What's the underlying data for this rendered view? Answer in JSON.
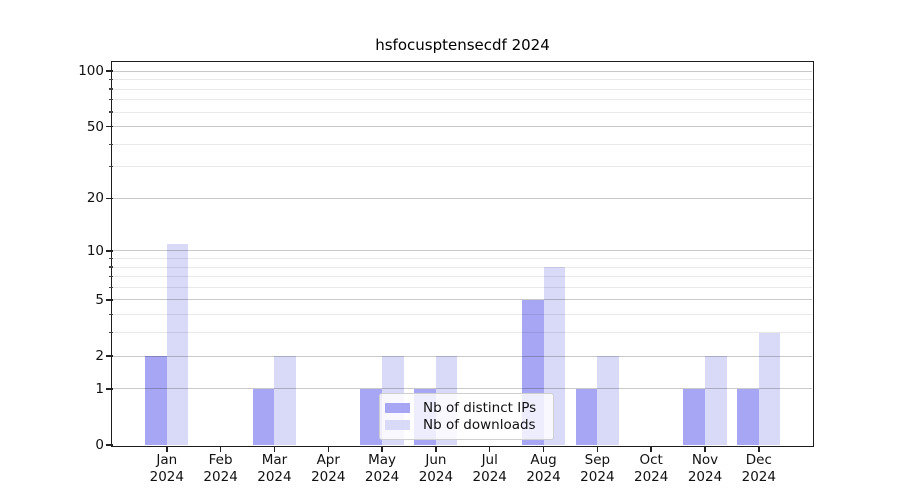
{
  "window": {
    "background": "#ffffff"
  },
  "chart_data": {
    "type": "bar",
    "title": "hsfocusptensecdf 2024",
    "categories": [
      "Jan",
      "Feb",
      "Mar",
      "Apr",
      "May",
      "Jun",
      "Jul",
      "Aug",
      "Sep",
      "Oct",
      "Nov",
      "Dec"
    ],
    "x_tick_year": "2024",
    "series": [
      {
        "name": "Nb of distinct IPs",
        "color": "#a6a6f4",
        "values": [
          2,
          0,
          1,
          0,
          1,
          1,
          0,
          5,
          1,
          0,
          1,
          1
        ]
      },
      {
        "name": "Nb of downloads",
        "color": "#d9d9f8",
        "values": [
          11,
          0,
          2,
          0,
          2,
          2,
          0,
          8,
          2,
          0,
          2,
          3
        ]
      }
    ],
    "yscale": "log1p-symlog",
    "major_yticks": [
      0,
      1,
      2,
      5,
      10,
      20,
      50,
      100
    ],
    "minor_yticks": [
      3,
      4,
      6,
      7,
      8,
      9,
      30,
      40,
      60,
      70,
      80,
      90
    ],
    "ylim": [
      0,
      112
    ],
    "xlabel": "",
    "ylabel": "",
    "grid": "both-horizontal",
    "legend_position": "inside-bottom-center"
  },
  "legend": {
    "items": [
      {
        "label": "Nb of distinct IPs",
        "color": "#a6a6f4"
      },
      {
        "label": "Nb of downloads",
        "color": "#d9d9f8"
      }
    ]
  },
  "colors": {
    "bar_distinct_ips": "#a6a6f4",
    "bar_downloads": "#d9d9f8",
    "spine": "#1c1c1c",
    "grid_major": "rgba(0,0,0,0.21)",
    "grid_minor": "rgba(0,0,0,0.085)",
    "legend_border": "#cfcfcf",
    "legend_background": "rgba(255,255,255,0.8)",
    "text": "#111111"
  }
}
